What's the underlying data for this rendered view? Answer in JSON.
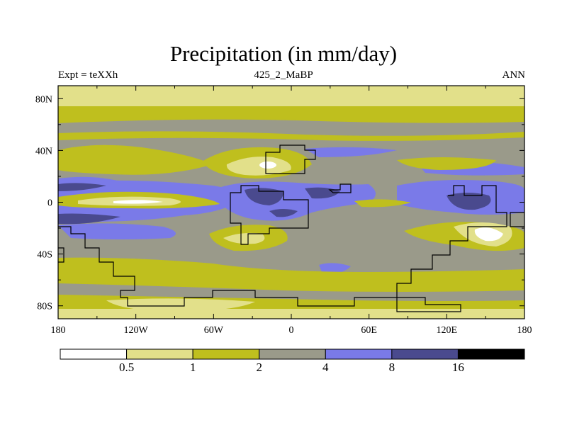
{
  "chart_data": {
    "type": "heatmap",
    "title": "Precipitation (in mm/day)",
    "subtitle_left": "Expt = teXXh",
    "subtitle_center": "425_2_MaBP",
    "subtitle_right": "ANN",
    "x_ticks": [
      "180",
      "120W",
      "60W",
      "0",
      "60E",
      "120E",
      "180"
    ],
    "x_tick_values": [
      -180,
      -120,
      -60,
      0,
      60,
      120,
      180
    ],
    "y_ticks": [
      "80N",
      "40N",
      "0",
      "40S",
      "80S"
    ],
    "y_tick_values": [
      80,
      40,
      0,
      -40,
      -80
    ],
    "xlim": [
      -180,
      180
    ],
    "ylim": [
      -90,
      90
    ],
    "units": "mm/day",
    "colorbar": {
      "levels": [
        "0.5",
        "1",
        "2",
        "4",
        "8",
        "16"
      ],
      "colors": [
        "#ffffff",
        "#e2e08a",
        "#bfbf1e",
        "#9a9a8a",
        "#7a7ae8",
        "#4a4a8e",
        "#000000"
      ]
    },
    "fields": {
      "land_outline_color": "#000000",
      "background_class": "2-4"
    }
  }
}
